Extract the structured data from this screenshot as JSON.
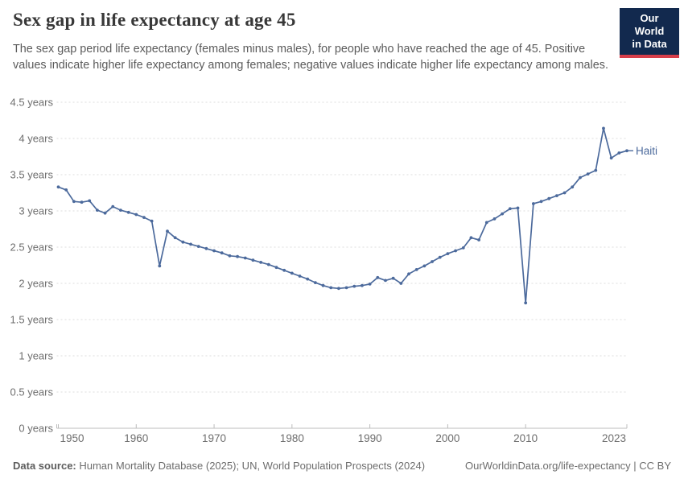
{
  "header": {
    "title": "Sex gap in life expectancy at age 45",
    "subtitle": "The sex gap period life expectancy (females minus males), for people who have reached the age of 45. Positive values indicate higher life expectancy among females; negative values indicate higher life expectancy among males.",
    "logo": {
      "line1": "Our World",
      "line2": "in Data"
    }
  },
  "chart_data": {
    "type": "line",
    "title": "Sex gap in life expectancy at age 45",
    "xlabel": "",
    "ylabel": "",
    "xlim": [
      1950,
      2023
    ],
    "ylim": [
      0,
      4.5
    ],
    "grid": "horizontal-dashed",
    "legend_position": "end-of-line-label",
    "x_ticks": [
      1950,
      1960,
      1970,
      1980,
      1990,
      2000,
      2010,
      2023
    ],
    "y_ticks": [
      0,
      0.5,
      1,
      1.5,
      2,
      2.5,
      3,
      3.5,
      4,
      4.5
    ],
    "y_tick_format": "{v} years",
    "series": [
      {
        "name": "Haiti",
        "color": "#4C6A9C",
        "start_year": 1950,
        "end_year": 2023,
        "values": [
          3.33,
          3.29,
          3.13,
          3.12,
          3.14,
          3.01,
          2.97,
          3.06,
          3.01,
          2.98,
          2.95,
          2.91,
          2.86,
          2.24,
          2.72,
          2.63,
          2.57,
          2.54,
          2.51,
          2.48,
          2.45,
          2.42,
          2.38,
          2.37,
          2.35,
          2.32,
          2.29,
          2.26,
          2.22,
          2.18,
          2.14,
          2.1,
          2.06,
          2.01,
          1.97,
          1.94,
          1.93,
          1.94,
          1.96,
          1.97,
          1.99,
          2.08,
          2.04,
          2.07,
          2.0,
          2.13,
          2.19,
          2.24,
          2.3,
          2.36,
          2.41,
          2.45,
          2.49,
          2.63,
          2.6,
          2.84,
          2.89,
          2.96,
          3.03,
          3.04,
          1.73,
          3.1,
          3.13,
          3.17,
          3.21,
          3.25,
          3.33,
          3.46,
          3.51,
          3.56,
          4.14,
          3.73,
          3.8,
          3.83
        ]
      }
    ]
  },
  "footer": {
    "source_label": "Data source:",
    "source_text": " Human Mortality Database (2025); UN, World Population Prospects (2024)",
    "link_text": "OurWorldinData.org/life-expectancy | CC BY"
  },
  "colors": {
    "line": "#4C6A9C",
    "entity_label": "#4C6A9C",
    "gridline": "#dddddd",
    "axis": "#bcbcbc",
    "tick_label": "#6e6e6e",
    "logo_bg": "#12294e",
    "logo_accent": "#d73e4a"
  }
}
